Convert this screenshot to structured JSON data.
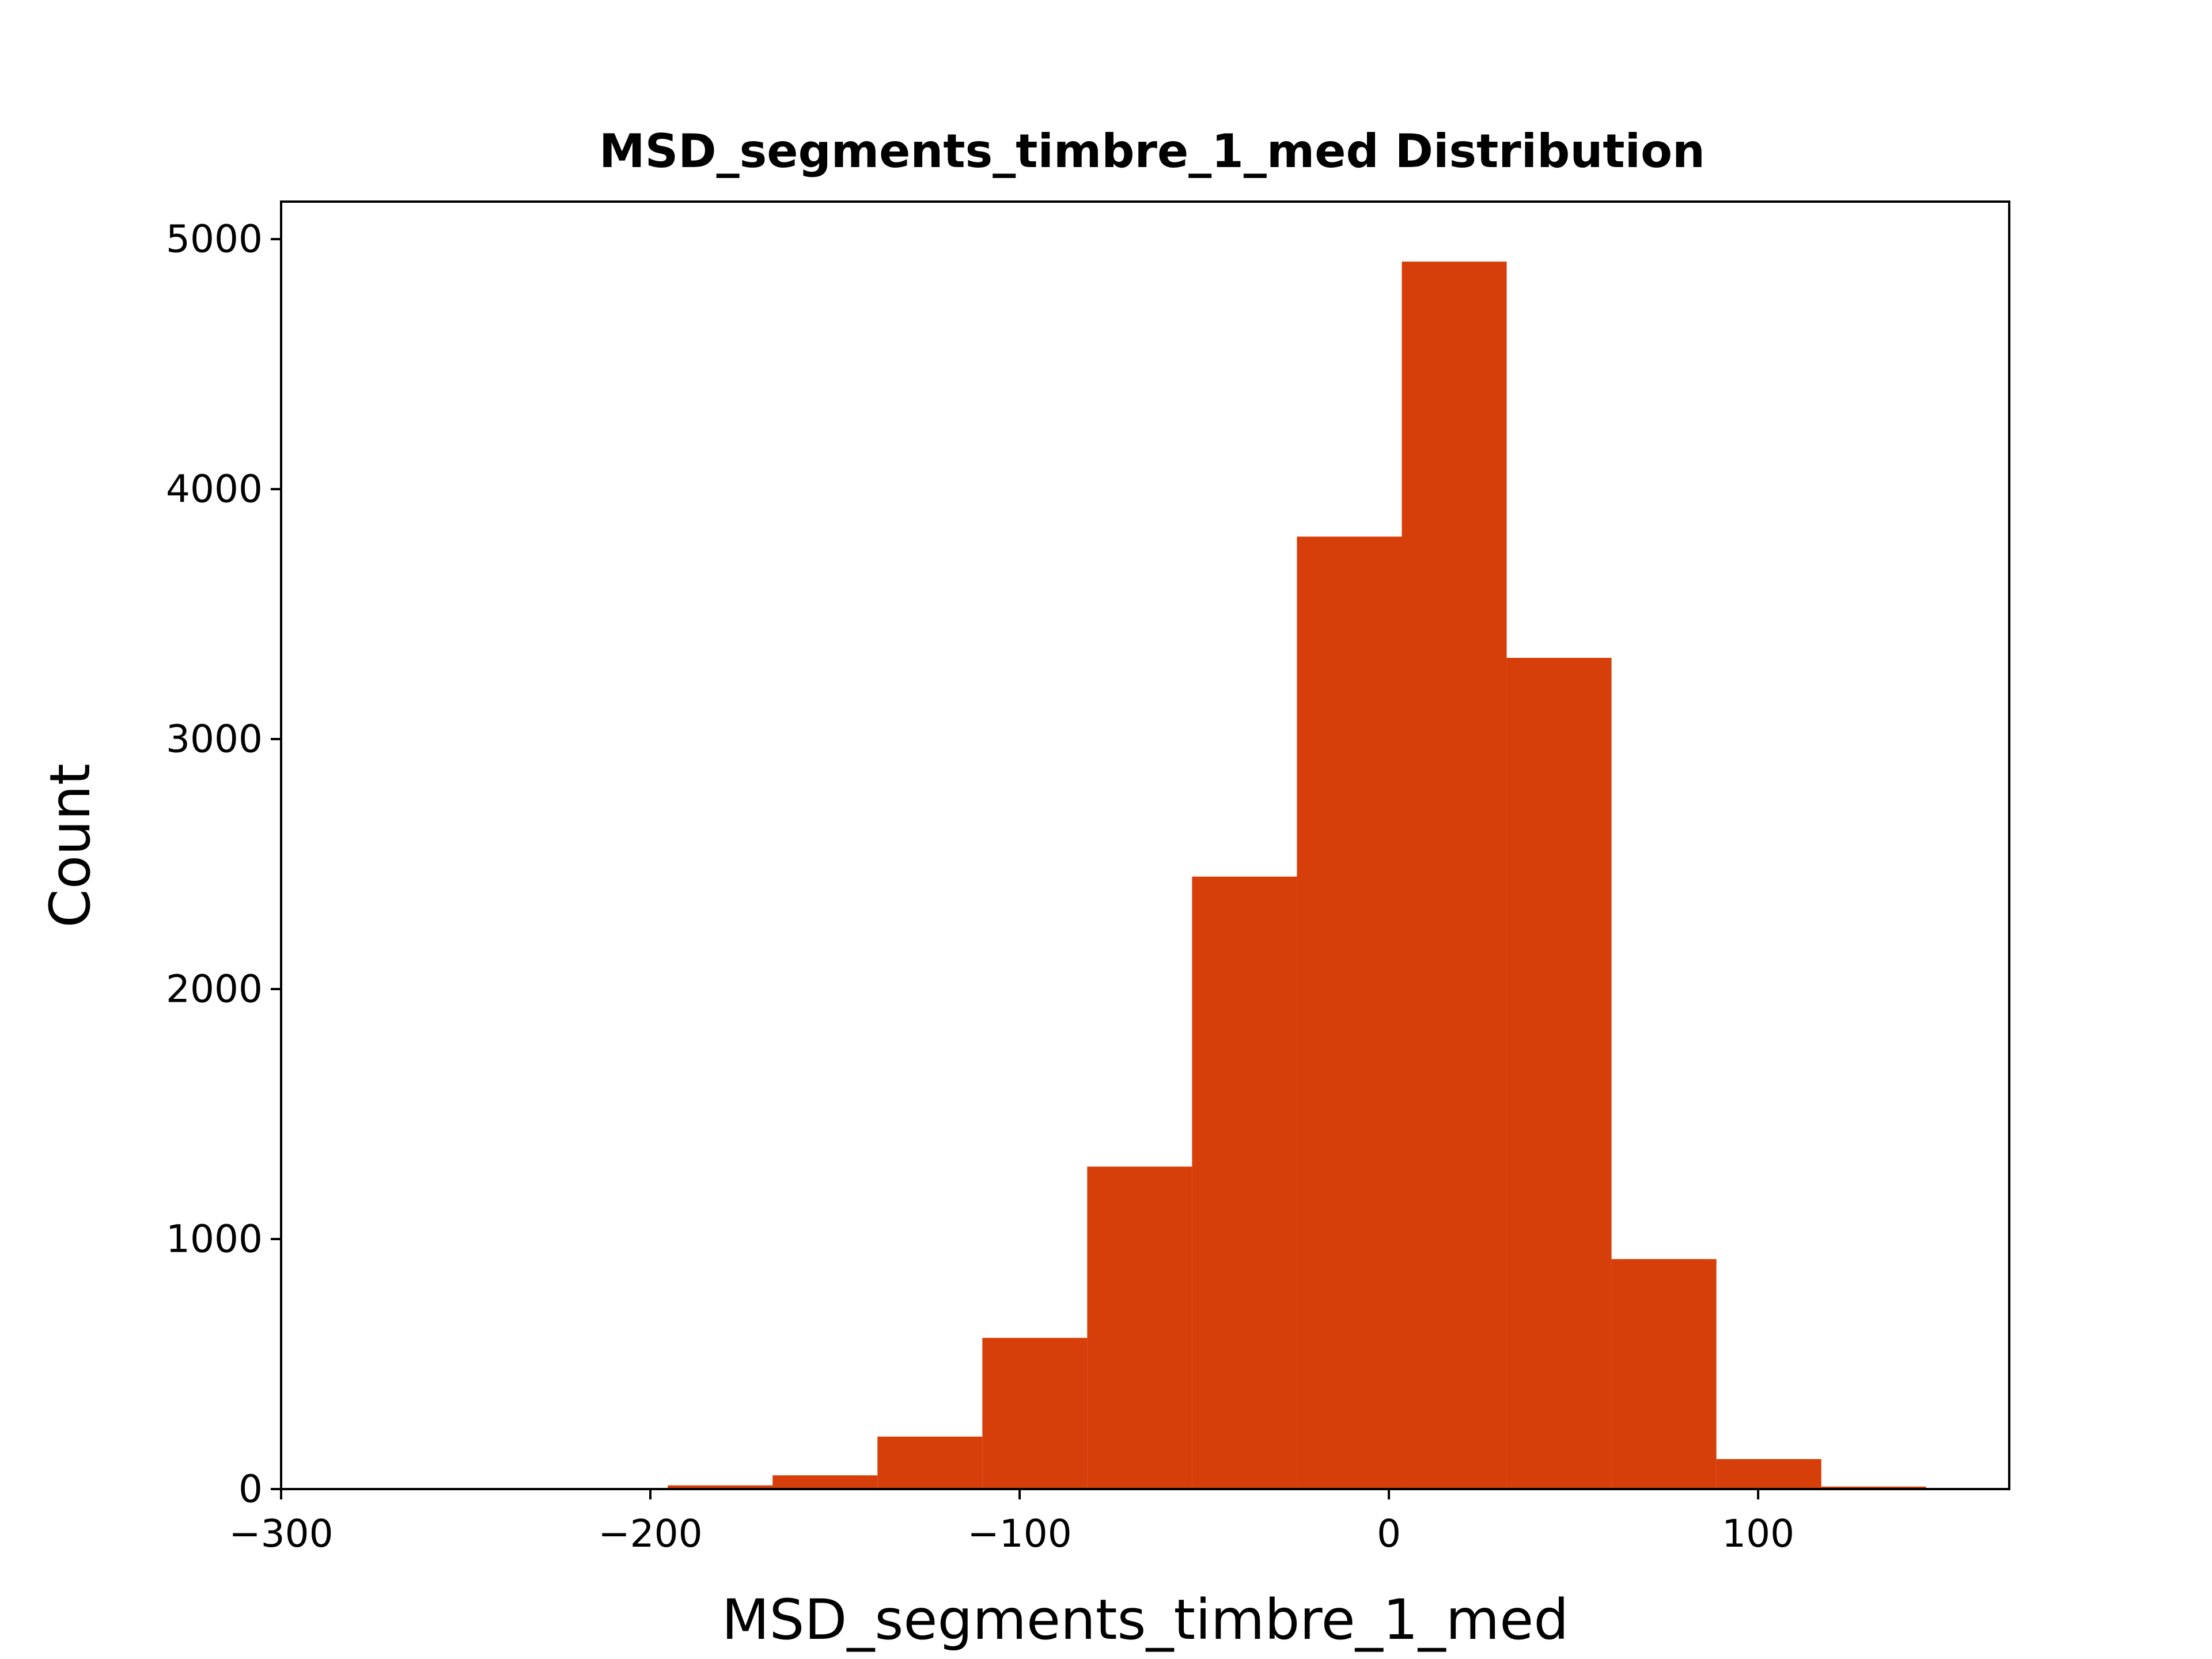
{
  "chart_data": {
    "type": "bar",
    "title": "MSD_segments_timbre_1_med Distribution",
    "xlabel": "MSD_segments_timbre_1_med",
    "ylabel": "Count",
    "xlim": [
      -300,
      168
    ],
    "ylim": [
      0,
      5150
    ],
    "xticks": [
      -300,
      -200,
      -100,
      0,
      100
    ],
    "xtick_labels": [
      "−300",
      "−200",
      "−100",
      "0",
      "100"
    ],
    "yticks": [
      0,
      1000,
      2000,
      3000,
      4000,
      5000
    ],
    "ytick_labels": [
      "0",
      "1000",
      "2000",
      "3000",
      "4000",
      "5000"
    ],
    "bar_color": "#d63f0a",
    "bins": [
      {
        "x0": -195.3,
        "x1": -166.9,
        "count": 15
      },
      {
        "x0": -166.9,
        "x1": -138.5,
        "count": 55
      },
      {
        "x0": -138.5,
        "x1": -110.1,
        "count": 210
      },
      {
        "x0": -110.1,
        "x1": -81.7,
        "count": 605
      },
      {
        "x0": -81.7,
        "x1": -53.3,
        "count": 1290
      },
      {
        "x0": -53.3,
        "x1": -24.9,
        "count": 2450
      },
      {
        "x0": -24.9,
        "x1": 3.5,
        "count": 3810
      },
      {
        "x0": 3.5,
        "x1": 31.9,
        "count": 4910
      },
      {
        "x0": 31.9,
        "x1": 60.3,
        "count": 3325
      },
      {
        "x0": 60.3,
        "x1": 88.7,
        "count": 920
      },
      {
        "x0": 88.7,
        "x1": 117.1,
        "count": 120
      },
      {
        "x0": 117.1,
        "x1": 145.5,
        "count": 10
      }
    ]
  }
}
